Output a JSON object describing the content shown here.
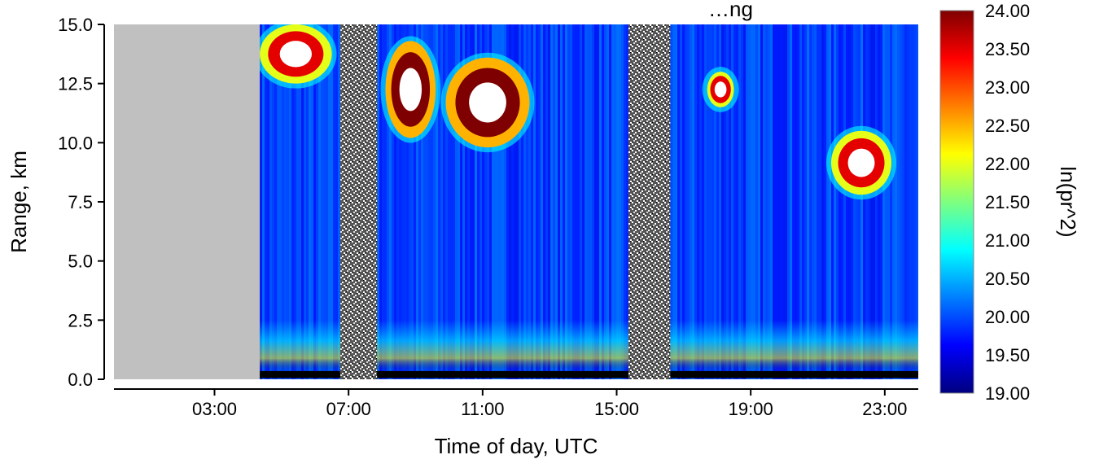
{
  "chart_data": {
    "type": "heatmap",
    "title": "…ng",
    "xlabel": "Time of day, UTC",
    "ylabel": "Range, km",
    "colorbar_label": "ln(pr^2)",
    "x_unit": "hours UTC",
    "xlim": [
      0,
      24
    ],
    "ylim": [
      0,
      15
    ],
    "clim": [
      19,
      24
    ],
    "x_ticks": [
      3,
      7,
      11,
      15,
      19,
      23
    ],
    "x_tick_labels": [
      "03:00",
      "07:00",
      "11:00",
      "15:00",
      "19:00",
      "23:00"
    ],
    "y_ticks": [
      0,
      2.5,
      5,
      7.5,
      10,
      12.5,
      15
    ],
    "y_tick_labels": [
      "0.0",
      "2.5",
      "5.0",
      "7.5",
      "10.0",
      "12.5",
      "15.0"
    ],
    "colorbar_ticks": [
      19,
      19.5,
      20,
      20.5,
      21,
      21.5,
      22,
      22.5,
      23,
      23.5,
      24
    ],
    "colorbar_tick_labels": [
      "19.00",
      "19.50",
      "20.00",
      "20.50",
      "21.00",
      "21.50",
      "22.00",
      "22.50",
      "23.00",
      "23.50",
      "24.00"
    ],
    "colormap": [
      "#00007f",
      "#0000ff",
      "#007fff",
      "#00ffff",
      "#7fff7f",
      "#ffff00",
      "#ff7f00",
      "#ff0000",
      "#7f0000"
    ],
    "no_data_color": "#c0c0c0",
    "no_data_intervals_utc": [
      [
        0,
        4.35
      ]
    ],
    "noise_intervals_utc": [
      [
        6.75,
        7.85
      ],
      [
        15.35,
        16.6
      ]
    ],
    "cloud_regions": [
      {
        "x": [
          4.35,
          6.5
        ],
        "y": [
          12.5,
          15
        ],
        "value": 23.5
      },
      {
        "x": [
          8.1,
          9.6
        ],
        "y": [
          10.2,
          14.3
        ],
        "value": 24
      },
      {
        "x": [
          9.9,
          12.4
        ],
        "y": [
          9.8,
          13.6
        ],
        "value": 24
      },
      {
        "x": [
          17.7,
          18.5
        ],
        "y": [
          11.5,
          13.0
        ],
        "value": 23.5
      },
      {
        "x": [
          21.4,
          23.2
        ],
        "y": [
          7.8,
          10.5
        ],
        "value": 23.5
      }
    ],
    "boundary_layer_top_km": 2.5,
    "grid": false,
    "legend": "none"
  }
}
